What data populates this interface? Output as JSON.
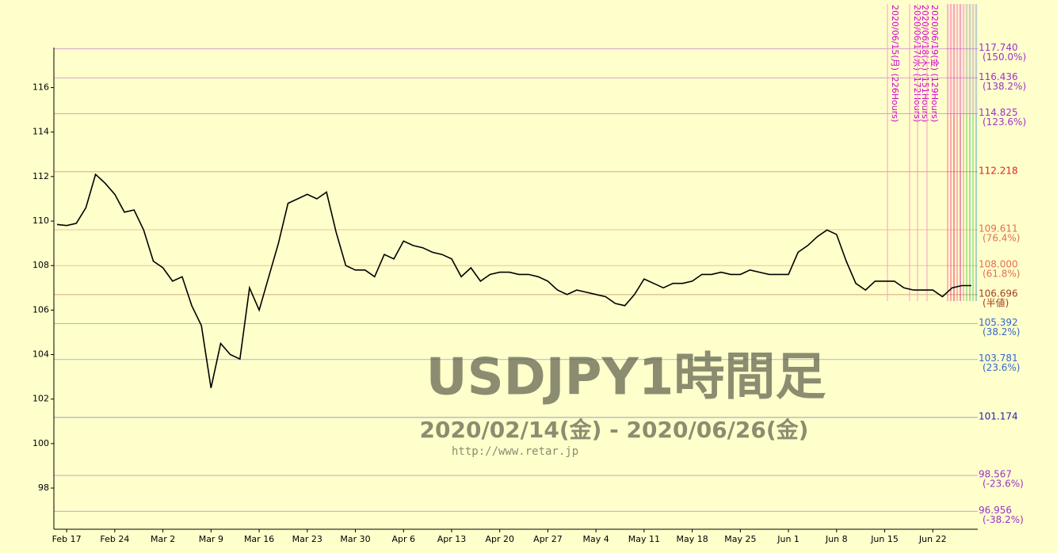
{
  "chart_data": {
    "type": "line",
    "title": "USDJPY1時間足",
    "subtitle": "2020/02/14(金) - 2020/06/26(金)",
    "source": "http://www.retar.jp",
    "categories": [
      null,
      "Feb 17",
      null,
      null,
      null,
      null,
      "Feb 24",
      null,
      null,
      null,
      null,
      "Mar 2",
      null,
      null,
      null,
      null,
      "Mar 9",
      null,
      null,
      null,
      null,
      "Mar 16",
      null,
      null,
      null,
      null,
      "Mar 23",
      null,
      null,
      null,
      null,
      "Mar 30",
      null,
      null,
      null,
      null,
      "Apr 6",
      null,
      null,
      null,
      null,
      "Apr 13",
      null,
      null,
      null,
      null,
      "Apr 20",
      null,
      null,
      null,
      null,
      "Apr 27",
      null,
      null,
      null,
      null,
      "May 4",
      null,
      null,
      null,
      null,
      "May 11",
      null,
      null,
      null,
      null,
      "May 18",
      null,
      null,
      null,
      null,
      "May 25",
      null,
      null,
      null,
      null,
      "Jun 1",
      null,
      null,
      null,
      null,
      "Jun 8",
      null,
      null,
      null,
      null,
      "Jun 15",
      null,
      null,
      null,
      null,
      "Jun 22",
      null,
      null,
      null,
      null
    ],
    "series": [
      {
        "name": "USDJPY",
        "color": "#000000",
        "values": [
          109.85,
          109.8,
          109.9,
          110.6,
          112.1,
          111.7,
          111.2,
          110.4,
          110.5,
          109.6,
          108.2,
          107.9,
          107.3,
          107.5,
          106.2,
          105.3,
          102.5,
          104.5,
          104.0,
          103.8,
          107.0,
          106.0,
          107.5,
          109.0,
          110.8,
          111.0,
          111.2,
          111.0,
          111.3,
          109.5,
          108.0,
          107.8,
          107.8,
          107.5,
          108.5,
          108.3,
          109.1,
          108.9,
          108.8,
          108.6,
          108.5,
          108.3,
          107.5,
          107.9,
          107.3,
          107.6,
          107.7,
          107.7,
          107.6,
          107.6,
          107.5,
          107.3,
          106.9,
          106.7,
          106.9,
          106.8,
          106.7,
          106.6,
          106.3,
          106.2,
          106.7,
          107.4,
          107.2,
          107.0,
          107.2,
          107.2,
          107.3,
          107.6,
          107.6,
          107.7,
          107.6,
          107.6,
          107.8,
          107.7,
          107.6,
          107.6,
          107.6,
          108.6,
          108.9,
          109.3,
          109.6,
          109.4,
          108.2,
          107.2,
          106.9,
          107.3,
          107.3,
          107.3,
          107.0,
          106.9,
          106.9,
          106.9,
          106.6,
          107.0,
          107.1,
          107.1
        ]
      }
    ],
    "ylim": [
      96.15,
      117.8
    ],
    "yticks": [
      98,
      100,
      102,
      104,
      106,
      108,
      110,
      112,
      114,
      116
    ],
    "levels": [
      {
        "value": 117.74,
        "label": "117.740",
        "note": "(150.0%)",
        "color": "#9933cc"
      },
      {
        "value": 116.436,
        "label": "116.436",
        "note": "(138.2%)",
        "color": "#9933cc"
      },
      {
        "value": 114.825,
        "label": "114.825",
        "note": "(123.6%)",
        "color": "#9933cc"
      },
      {
        "value": 112.218,
        "label": "112.218",
        "color": "#dd2222"
      },
      {
        "value": 109.611,
        "label": "109.611",
        "note": "(76.4%)",
        "color": "#e07050"
      },
      {
        "value": 108.0,
        "label": "108.000",
        "note": "(61.8%)",
        "color": "#e07050"
      },
      {
        "value": 106.696,
        "label": "106.696",
        "note": "(半値)",
        "color": "#a04020"
      },
      {
        "value": 105.392,
        "label": "105.392",
        "note": "(38.2%)",
        "color": "#3366cc"
      },
      {
        "value": 103.781,
        "label": "103.781",
        "note": "(23.6%)",
        "color": "#3366cc"
      },
      {
        "value": 101.174,
        "label": "101.174",
        "color": "#2222aa"
      },
      {
        "value": 98.567,
        "label": "98.567",
        "note": "(-23.6%)",
        "color": "#9933cc"
      },
      {
        "value": 96.956,
        "label": "96.956",
        "note": "(-38.2%)",
        "color": "#9933cc"
      }
    ],
    "annotations": [
      "2020/06/15(月) (226Hours)",
      "2020/06/17(水) (172Hours)",
      "2020/06/18(木) (151Hours)",
      "2020/06/19(金) (129Hours)"
    ]
  }
}
